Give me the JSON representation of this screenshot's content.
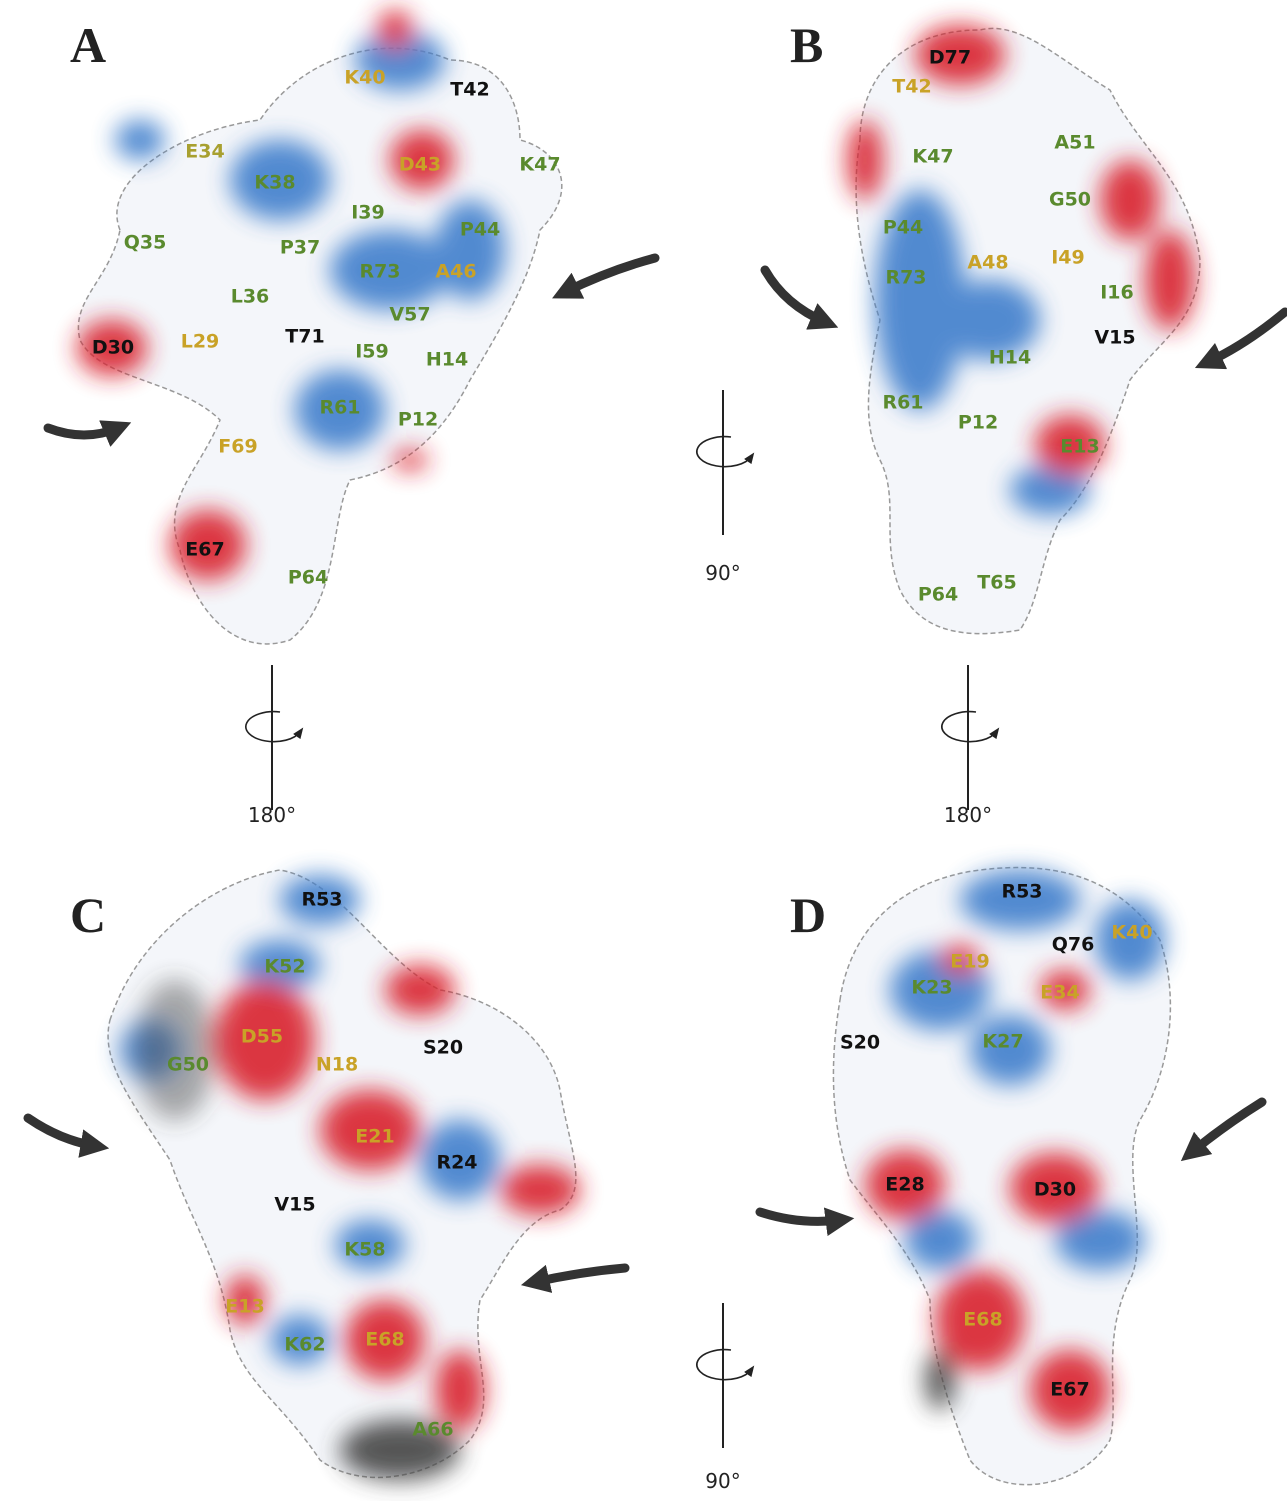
{
  "panels": [
    {
      "letter": "A",
      "residues": [
        {
          "label": "K40",
          "color": "#c9a227"
        },
        {
          "label": "T42",
          "color": "#111111"
        },
        {
          "label": "E34",
          "color": "#a8a030"
        },
        {
          "label": "K38",
          "color": "#5a8a2e"
        },
        {
          "label": "D43",
          "color": "#c9a227"
        },
        {
          "label": "K47",
          "color": "#5a8a2e"
        },
        {
          "label": "I39",
          "color": "#5a8a2e"
        },
        {
          "label": "Q35",
          "color": "#5a8a2e"
        },
        {
          "label": "P37",
          "color": "#5a8a2e"
        },
        {
          "label": "P44",
          "color": "#5a8a2e"
        },
        {
          "label": "R73",
          "color": "#5a8a2e"
        },
        {
          "label": "A46",
          "color": "#c9a227"
        },
        {
          "label": "L36",
          "color": "#5a8a2e"
        },
        {
          "label": "V57",
          "color": "#5a8a2e"
        },
        {
          "label": "D30",
          "color": "#111111"
        },
        {
          "label": "L29",
          "color": "#c9a227"
        },
        {
          "label": "T71",
          "color": "#111111"
        },
        {
          "label": "I59",
          "color": "#5a8a2e"
        },
        {
          "label": "H14",
          "color": "#5a8a2e"
        },
        {
          "label": "R61",
          "color": "#5a8a2e"
        },
        {
          "label": "P12",
          "color": "#5a8a2e"
        },
        {
          "label": "F69",
          "color": "#c9a227"
        },
        {
          "label": "E67",
          "color": "#111111"
        },
        {
          "label": "P64",
          "color": "#5a8a2e"
        }
      ]
    },
    {
      "letter": "B",
      "residues": [
        {
          "label": "D77",
          "color": "#111111"
        },
        {
          "label": "T42",
          "color": "#c9a227"
        },
        {
          "label": "A51",
          "color": "#5a8a2e"
        },
        {
          "label": "K47",
          "color": "#5a8a2e"
        },
        {
          "label": "G50",
          "color": "#5a8a2e"
        },
        {
          "label": "P44",
          "color": "#5a8a2e"
        },
        {
          "label": "A48",
          "color": "#c9a227"
        },
        {
          "label": "I49",
          "color": "#c9a227"
        },
        {
          "label": "I16",
          "color": "#5a8a2e"
        },
        {
          "label": "R73",
          "color": "#5a8a2e"
        },
        {
          "label": "V15",
          "color": "#111111"
        },
        {
          "label": "H14",
          "color": "#5a8a2e"
        },
        {
          "label": "R61",
          "color": "#5a8a2e"
        },
        {
          "label": "P12",
          "color": "#5a8a2e"
        },
        {
          "label": "E13",
          "color": "#5a8a2e"
        },
        {
          "label": "P64",
          "color": "#5a8a2e"
        },
        {
          "label": "T65",
          "color": "#5a8a2e"
        }
      ]
    },
    {
      "letter": "C",
      "residues": [
        {
          "label": "R53",
          "color": "#111111"
        },
        {
          "label": "K52",
          "color": "#5a8a2e"
        },
        {
          "label": "D55",
          "color": "#c9a227"
        },
        {
          "label": "G50",
          "color": "#5a8a2e"
        },
        {
          "label": "N18",
          "color": "#c9a227"
        },
        {
          "label": "S20",
          "color": "#111111"
        },
        {
          "label": "E21",
          "color": "#c9a227"
        },
        {
          "label": "R24",
          "color": "#111111"
        },
        {
          "label": "V15",
          "color": "#111111"
        },
        {
          "label": "K58",
          "color": "#5a8a2e"
        },
        {
          "label": "E13",
          "color": "#c9a227"
        },
        {
          "label": "K62",
          "color": "#5a8a2e"
        },
        {
          "label": "E68",
          "color": "#c9a227"
        },
        {
          "label": "A66",
          "color": "#5a8a2e"
        }
      ]
    },
    {
      "letter": "D",
      "residues": [
        {
          "label": "R53",
          "color": "#111111"
        },
        {
          "label": "Q76",
          "color": "#111111"
        },
        {
          "label": "K40",
          "color": "#c9a227"
        },
        {
          "label": "E19",
          "color": "#c9a227"
        },
        {
          "label": "K23",
          "color": "#5a8a2e"
        },
        {
          "label": "E34",
          "color": "#c9a227"
        },
        {
          "label": "S20",
          "color": "#111111"
        },
        {
          "label": "K27",
          "color": "#5a8a2e"
        },
        {
          "label": "E28",
          "color": "#111111"
        },
        {
          "label": "D30",
          "color": "#111111"
        },
        {
          "label": "E68",
          "color": "#c9a227"
        },
        {
          "label": "E67",
          "color": "#111111"
        }
      ]
    }
  ],
  "rotations": [
    {
      "angle": "90°"
    },
    {
      "angle": "180°"
    },
    {
      "angle": "180°"
    },
    {
      "angle": "90°"
    }
  ]
}
